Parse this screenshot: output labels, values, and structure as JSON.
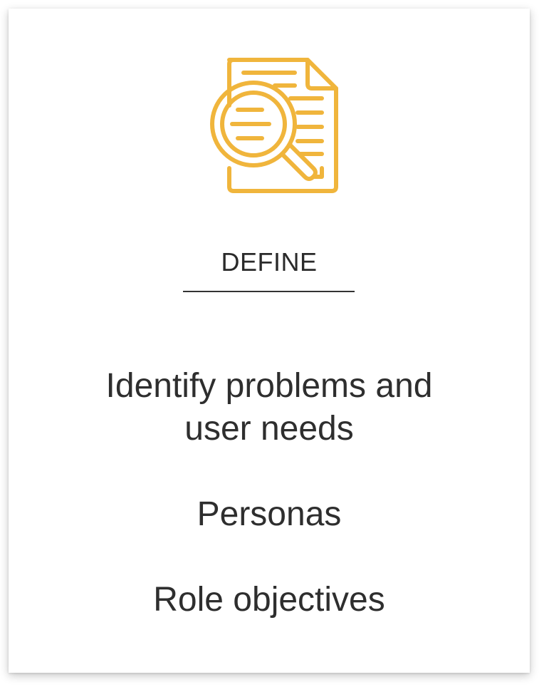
{
  "card": {
    "icon": "document-magnifier-icon",
    "accent_color": "#F0B53C",
    "title": "DEFINE",
    "items": [
      "Identify problems and user needs",
      "Personas",
      "Role objectives"
    ]
  }
}
